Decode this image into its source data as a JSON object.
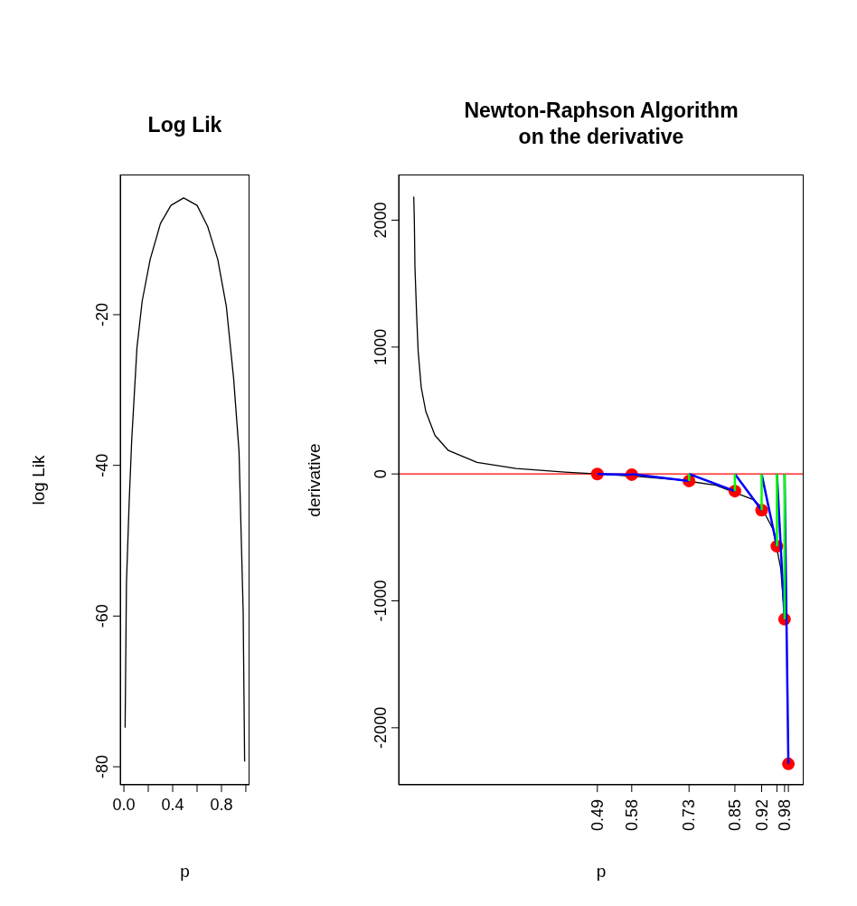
{
  "chart_data": [
    {
      "type": "line",
      "title": "Log Lik",
      "xlabel": "p",
      "ylabel": "log Lik",
      "xlim": [
        -0.03,
        1.03
      ],
      "xticks": [
        {
          "value": 0,
          "label": "0.0"
        },
        {
          "value": 0.2,
          "label": null
        },
        0.4,
        {
          "value": 0.6,
          "label": null
        },
        0.8,
        {
          "value": 1,
          "label": null
        }
      ],
      "ylim": [
        -82.4,
        -1.4
      ],
      "yticks": [
        -80,
        -60,
        -40,
        -20
      ],
      "grid": false,
      "series": [
        {
          "color": "#000000",
          "x": [
            0.01,
            0.021,
            0.043,
            0.064,
            0.107,
            0.15,
            0.215,
            0.3,
            0.386,
            0.49,
            0.6,
            0.687,
            0.77,
            0.84,
            0.9,
            0.944,
            0.978,
            0.99
          ],
          "values": [
            -74.8,
            -55.6,
            -45,
            -36.7,
            -24.4,
            -18.2,
            -12.7,
            -7.9,
            -5.5,
            -4.5,
            -5.5,
            -8.3,
            -12.7,
            -18.9,
            -28.5,
            -38.1,
            -59.4,
            -79.3
          ]
        }
      ]
    },
    {
      "type": "line",
      "title": "Newton-Raphson Algorithm\non the derivative",
      "xlabel": "p",
      "ylabel": "derivative",
      "xlim": [
        -0.03,
        1.03
      ],
      "xticks": [
        0.49,
        0.58,
        0.73,
        0.85,
        0.92,
        {
          "value": 0.96,
          "label": null
        },
        0.98,
        {
          "value": 0.99,
          "label": null
        }
      ],
      "ylim": [
        -2450,
        2360
      ],
      "yticks": [
        -2000,
        -1000,
        0,
        1000,
        2000
      ],
      "grid": false,
      "ref_lines": [
        {
          "axis": "y",
          "value": 0,
          "color": "#ff0000"
        }
      ],
      "series": [
        {
          "color": "#000000",
          "x": [
            0.0095,
            0.011,
            0.0126,
            0.017,
            0.021,
            0.029,
            0.041,
            0.065,
            0.1,
            0.175,
            0.277,
            0.405,
            0.49,
            0.6,
            0.7,
            0.8,
            0.9,
            0.92,
            0.95,
            0.97,
            0.98
          ],
          "values": [
            2185,
            2000,
            1632,
            1253,
            968,
            683,
            493,
            304,
            185,
            92,
            43,
            14,
            0,
            -21,
            -45,
            -88,
            -205,
            -264,
            -437,
            -744,
            -1128
          ]
        },
        {
          "type": "scatter",
          "marker": "circle",
          "color": "#ff0000",
          "x": [
            0.49,
            0.58,
            0.73,
            0.85,
            0.92,
            0.96,
            0.98,
            0.99
          ],
          "values": [
            0,
            -5,
            -55,
            -135,
            -285,
            -570,
            -1145,
            -2285
          ]
        },
        {
          "color": "#0000ff",
          "x": [
            0.99,
            0.98
          ],
          "values": [
            -2285,
            0
          ]
        },
        {
          "color": "#0000ff",
          "x": [
            0.98,
            0.96
          ],
          "values": [
            -1145,
            0
          ]
        },
        {
          "color": "#0000ff",
          "x": [
            0.96,
            0.92
          ],
          "values": [
            -570,
            0
          ]
        },
        {
          "color": "#0000ff",
          "x": [
            0.92,
            0.85
          ],
          "values": [
            -285,
            0
          ]
        },
        {
          "color": "#0000ff",
          "x": [
            0.85,
            0.73
          ],
          "values": [
            -135,
            0
          ]
        },
        {
          "color": "#0000ff",
          "x": [
            0.73,
            0.58
          ],
          "values": [
            -55,
            0
          ]
        },
        {
          "color": "#0000ff",
          "x": [
            0.58,
            0.49
          ],
          "values": [
            -5,
            0
          ]
        },
        {
          "color": "#00ff00",
          "x": [
            0.98,
            0.98
          ],
          "values": [
            0,
            -1145
          ]
        },
        {
          "color": "#00ff00",
          "x": [
            0.96,
            0.96
          ],
          "values": [
            0,
            -570
          ]
        },
        {
          "color": "#00ff00",
          "x": [
            0.92,
            0.92
          ],
          "values": [
            0,
            -285
          ]
        },
        {
          "color": "#00ff00",
          "x": [
            0.85,
            0.85
          ],
          "values": [
            0,
            -135
          ]
        },
        {
          "color": "#00ff00",
          "x": [
            0.73,
            0.73
          ],
          "values": [
            0,
            -55
          ]
        }
      ]
    }
  ]
}
